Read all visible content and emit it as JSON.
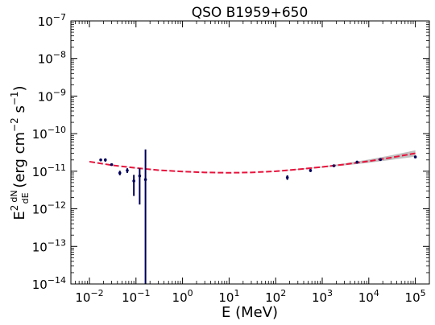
{
  "chart_data": {
    "type": "scatter",
    "title": "QSO B1959+650",
    "xlabel": "E (MeV)",
    "xscale": "log",
    "yscale": "log",
    "xlim": [
      0.004,
      200000
    ],
    "ylim": [
      1e-14,
      1e-07
    ],
    "x_ticks": [
      {
        "value": 0.01,
        "base": "10",
        "exp": "−2"
      },
      {
        "value": 0.1,
        "base": "10",
        "exp": "−1"
      },
      {
        "value": 1,
        "base": "10",
        "exp": "0"
      },
      {
        "value": 10,
        "base": "10",
        "exp": "1"
      },
      {
        "value": 100,
        "base": "10",
        "exp": "2"
      },
      {
        "value": 1000,
        "base": "10",
        "exp": "3"
      },
      {
        "value": 10000,
        "base": "10",
        "exp": "4"
      },
      {
        "value": 100000,
        "base": "10",
        "exp": "5"
      }
    ],
    "y_ticks": [
      {
        "value": 1e-14,
        "base": "10",
        "exp": "−14"
      },
      {
        "value": 1e-13,
        "base": "10",
        "exp": "−13"
      },
      {
        "value": 1e-12,
        "base": "10",
        "exp": "−12"
      },
      {
        "value": 1e-11,
        "base": "10",
        "exp": "−11"
      },
      {
        "value": 1e-10,
        "base": "10",
        "exp": "−10"
      },
      {
        "value": 1e-09,
        "base": "10",
        "exp": "−9"
      },
      {
        "value": 1e-08,
        "base": "10",
        "exp": "−8"
      },
      {
        "value": 1e-07,
        "base": "10",
        "exp": "−7"
      }
    ],
    "ylabel": {
      "prefix": "E",
      "prefix_exp": "2",
      "frac_num": "dN",
      "frac_den": "dE",
      "units_open": " (erg cm",
      "units_exp1": "−2",
      "units_mid": " s",
      "units_exp2": "−1",
      "units_close": ")"
    },
    "points": [
      {
        "x": 0.0175,
        "y": 2e-11,
        "ylo": 1.9e-11,
        "yhi": 2.1e-11
      },
      {
        "x": 0.022,
        "y": 2e-11,
        "ylo": 1.8e-11,
        "yhi": 2.2e-11
      },
      {
        "x": 0.03,
        "y": 1.5e-11,
        "ylo": 1.4e-11,
        "yhi": 1.6e-11
      },
      {
        "x": 0.045,
        "y": 9e-12,
        "ylo": 7.8e-12,
        "yhi": 1.03e-11
      },
      {
        "x": 0.065,
        "y": 1.05e-11,
        "ylo": 9e-12,
        "yhi": 1.2e-11
      },
      {
        "x": 0.09,
        "y": 5.5e-12,
        "ylo": 2.2e-12,
        "yhi": 8e-12
      },
      {
        "x": 0.12,
        "y": 7.5e-12,
        "ylo": 1.3e-12,
        "yhi": 1.2e-11
      },
      {
        "x": 0.16,
        "y": 6e-12,
        "ylo": 1e-14,
        "yhi": 3.8e-11
      },
      {
        "x": 178,
        "y": 6.8e-12,
        "ylo": 5.9e-12,
        "yhi": 7.8e-12
      },
      {
        "x": 560,
        "y": 1.05e-11,
        "ylo": 9.5e-12,
        "yhi": 1.15e-11
      },
      {
        "x": 1780,
        "y": 1.4e-11,
        "ylo": 1.3e-11,
        "yhi": 1.5e-11
      },
      {
        "x": 5600,
        "y": 1.75e-11,
        "ylo": 1.6e-11,
        "yhi": 1.9e-11
      },
      {
        "x": 17800,
        "y": 2.05e-11,
        "ylo": 1.9e-11,
        "yhi": 2.2e-11
      },
      {
        "x": 100000,
        "y": 2.4e-11,
        "ylo": 2.2e-11,
        "yhi": 2.6e-11
      }
    ],
    "model_curve": {
      "x": [
        0.01,
        0.03,
        0.1,
        0.3,
        1,
        3,
        10,
        30,
        100,
        300,
        1000,
        3000,
        10000,
        30000,
        100000
      ],
      "y": [
        1.8e-11,
        1.45e-11,
        1.22e-11,
        1.07e-11,
        9.8e-12,
        9.3e-12,
        9.1e-12,
        9.3e-12,
        1e-11,
        1.12e-11,
        1.3e-11,
        1.52e-11,
        1.85e-11,
        2.3e-11,
        3e-11
      ],
      "band_lo": [
        1.8e-11,
        1.45e-11,
        1.22e-11,
        1.07e-11,
        9.8e-12,
        9.3e-12,
        9.1e-12,
        9.3e-12,
        9.9e-12,
        1.09e-11,
        1.25e-11,
        1.43e-11,
        1.68e-11,
        2e-11,
        2.45e-11
      ],
      "band_hi": [
        1.8e-11,
        1.45e-11,
        1.22e-11,
        1.07e-11,
        9.8e-12,
        9.3e-12,
        9.1e-12,
        9.3e-12,
        1.01e-11,
        1.15e-11,
        1.35e-11,
        1.62e-11,
        2.05e-11,
        2.65e-11,
        3.6e-11
      ]
    },
    "colors": {
      "points": "#00005a",
      "model_line": "#e8133c",
      "band": "#c0c0c0"
    },
    "grid": false,
    "legend": "none"
  }
}
